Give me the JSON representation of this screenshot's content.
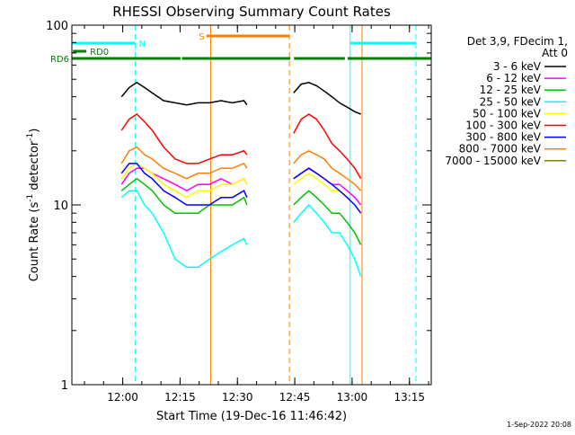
{
  "chart_data": {
    "type": "line",
    "title": "RHESSI Observing Summary Count Rates",
    "xlabel": "Start Time (19-Dec-16 11:46:42)",
    "ylabel_main": "Count Rate (s",
    "ylabel_sup1": "-1",
    "ylabel_mid": " detector",
    "ylabel_sup2": "-1",
    "ylabel_end": ")",
    "y_scale": "log",
    "ylim": [
      1,
      100
    ],
    "xlim_minutes": [
      0,
      94
    ],
    "x_ticks": [
      {
        "t": 13.3,
        "label": "12:00"
      },
      {
        "t": 28.3,
        "label": "12:15"
      },
      {
        "t": 43.3,
        "label": "12:30"
      },
      {
        "t": 58.3,
        "label": "12:45"
      },
      {
        "t": 73.3,
        "label": "13:00"
      },
      {
        "t": 88.3,
        "label": "13:15"
      }
    ],
    "y_ticks": [
      {
        "v": 1,
        "label": "1"
      },
      {
        "v": 10,
        "label": "10"
      },
      {
        "v": 100,
        "label": "100"
      }
    ],
    "legend": {
      "header": [
        "Det 3,9, FDecim 1,",
        "Att 0"
      ],
      "placement": "right"
    },
    "series": [
      {
        "name": "3 - 6 keV",
        "color": "#000000",
        "values": [
          [
            13.0,
            40
          ],
          [
            15.0,
            45
          ],
          [
            17.0,
            48
          ],
          [
            19.0,
            45
          ],
          [
            21.0,
            42
          ],
          [
            24.0,
            38
          ],
          [
            27.0,
            37
          ],
          [
            30.0,
            36
          ],
          [
            33.0,
            37
          ],
          [
            36.0,
            37
          ],
          [
            39.0,
            38
          ],
          [
            42.0,
            37
          ],
          [
            45.0,
            38
          ],
          [
            45.8,
            36
          ],
          [
            58.0,
            42
          ],
          [
            60.0,
            47
          ],
          [
            62.0,
            48
          ],
          [
            64.0,
            46
          ],
          [
            66.0,
            43
          ],
          [
            68.0,
            40
          ],
          [
            70.0,
            37
          ],
          [
            72.0,
            35
          ],
          [
            74.0,
            33
          ],
          [
            75.6,
            32
          ]
        ]
      },
      {
        "name": "6 - 12 keV",
        "color": "#ff00ff",
        "values": [
          [
            13.0,
            13
          ],
          [
            15.0,
            15
          ],
          [
            17.0,
            16
          ],
          [
            19.0,
            16
          ],
          [
            21.0,
            15
          ],
          [
            24.0,
            14
          ],
          [
            27.0,
            13
          ],
          [
            30.0,
            12
          ],
          [
            33.0,
            13
          ],
          [
            36.0,
            13
          ],
          [
            39.0,
            14
          ],
          [
            42.0,
            13
          ],
          [
            45.0,
            14
          ],
          [
            45.8,
            13
          ],
          [
            58.0,
            14
          ],
          [
            60.0,
            15
          ],
          [
            62.0,
            16
          ],
          [
            64.0,
            15
          ],
          [
            66.0,
            14
          ],
          [
            68.0,
            13
          ],
          [
            70.0,
            13
          ],
          [
            72.0,
            12
          ],
          [
            74.0,
            11
          ],
          [
            75.6,
            10
          ]
        ]
      },
      {
        "name": "12 - 25 keV",
        "color": "#00c000",
        "values": [
          [
            13.0,
            12
          ],
          [
            15.0,
            13
          ],
          [
            17.0,
            14
          ],
          [
            19.0,
            13
          ],
          [
            21.0,
            12
          ],
          [
            24.0,
            10
          ],
          [
            27.0,
            9
          ],
          [
            30.0,
            9
          ],
          [
            33.0,
            9
          ],
          [
            36.0,
            10
          ],
          [
            39.0,
            10
          ],
          [
            42.0,
            10
          ],
          [
            45.0,
            11
          ],
          [
            45.8,
            10
          ],
          [
            58.0,
            10
          ],
          [
            60.0,
            11
          ],
          [
            62.0,
            12
          ],
          [
            64.0,
            11
          ],
          [
            66.0,
            10
          ],
          [
            68.0,
            9
          ],
          [
            70.0,
            9
          ],
          [
            72.0,
            8
          ],
          [
            74.0,
            7
          ],
          [
            75.6,
            6
          ]
        ]
      },
      {
        "name": "25 - 50 keV",
        "color": "#00ffff",
        "values": [
          [
            13.0,
            11
          ],
          [
            15.0,
            12
          ],
          [
            17.0,
            12
          ],
          [
            19.0,
            10
          ],
          [
            21.0,
            9
          ],
          [
            24.0,
            7
          ],
          [
            27.0,
            5
          ],
          [
            30.0,
            4.5
          ],
          [
            33.0,
            4.5
          ],
          [
            36.0,
            5
          ],
          [
            39.0,
            5.5
          ],
          [
            42.0,
            6
          ],
          [
            45.0,
            6.5
          ],
          [
            45.8,
            6
          ],
          [
            58.0,
            8
          ],
          [
            60.0,
            9
          ],
          [
            62.0,
            10
          ],
          [
            64.0,
            9
          ],
          [
            66.0,
            8
          ],
          [
            68.0,
            7
          ],
          [
            70.0,
            7
          ],
          [
            72.0,
            6
          ],
          [
            74.0,
            5
          ],
          [
            75.6,
            4
          ]
        ]
      },
      {
        "name": "50 - 100 keV",
        "color": "#ffff00",
        "values": [
          [
            13.0,
            14
          ],
          [
            15.0,
            16
          ],
          [
            17.0,
            17
          ],
          [
            19.0,
            16
          ],
          [
            21.0,
            15
          ],
          [
            24.0,
            13
          ],
          [
            27.0,
            12
          ],
          [
            30.0,
            11
          ],
          [
            33.0,
            12
          ],
          [
            36.0,
            12
          ],
          [
            39.0,
            13
          ],
          [
            42.0,
            13
          ],
          [
            45.0,
            14
          ],
          [
            45.8,
            13
          ],
          [
            58.0,
            13
          ],
          [
            60.0,
            14
          ],
          [
            62.0,
            15
          ],
          [
            64.0,
            14
          ],
          [
            66.0,
            13
          ],
          [
            68.0,
            12
          ],
          [
            70.0,
            12
          ],
          [
            72.0,
            11
          ],
          [
            74.0,
            10
          ],
          [
            75.6,
            9
          ]
        ]
      },
      {
        "name": "100 - 300 keV",
        "color": "#ff0000",
        "values": [
          [
            13.0,
            26
          ],
          [
            15.0,
            30
          ],
          [
            17.0,
            32
          ],
          [
            19.0,
            29
          ],
          [
            21.0,
            26
          ],
          [
            24.0,
            21
          ],
          [
            27.0,
            18
          ],
          [
            30.0,
            17
          ],
          [
            33.0,
            17
          ],
          [
            36.0,
            18
          ],
          [
            39.0,
            19
          ],
          [
            42.0,
            19
          ],
          [
            45.0,
            20
          ],
          [
            45.8,
            19
          ],
          [
            58.0,
            25
          ],
          [
            60.0,
            30
          ],
          [
            62.0,
            32
          ],
          [
            64.0,
            30
          ],
          [
            66.0,
            26
          ],
          [
            68.0,
            22
          ],
          [
            70.0,
            20
          ],
          [
            72.0,
            18
          ],
          [
            74.0,
            16
          ],
          [
            75.6,
            14
          ]
        ]
      },
      {
        "name": "300 - 800 keV",
        "color": "#0000ff",
        "values": [
          [
            13.0,
            15
          ],
          [
            15.0,
            17
          ],
          [
            17.0,
            17
          ],
          [
            19.0,
            15
          ],
          [
            21.0,
            14
          ],
          [
            24.0,
            12
          ],
          [
            27.0,
            11
          ],
          [
            30.0,
            10
          ],
          [
            33.0,
            10
          ],
          [
            36.0,
            10
          ],
          [
            39.0,
            11
          ],
          [
            42.0,
            11
          ],
          [
            45.0,
            12
          ],
          [
            45.8,
            11
          ],
          [
            58.0,
            14
          ],
          [
            60.0,
            15
          ],
          [
            62.0,
            16
          ],
          [
            64.0,
            15
          ],
          [
            66.0,
            14
          ],
          [
            68.0,
            13
          ],
          [
            70.0,
            12
          ],
          [
            72.0,
            11
          ],
          [
            74.0,
            10
          ],
          [
            75.6,
            9
          ]
        ]
      },
      {
        "name": "800 - 7000 keV",
        "color": "#ff8000",
        "values": [
          [
            13.0,
            17
          ],
          [
            15.0,
            20
          ],
          [
            17.0,
            21
          ],
          [
            19.0,
            19
          ],
          [
            21.0,
            18
          ],
          [
            24.0,
            16
          ],
          [
            27.0,
            15
          ],
          [
            30.0,
            14
          ],
          [
            33.0,
            15
          ],
          [
            36.0,
            15
          ],
          [
            39.0,
            16
          ],
          [
            42.0,
            16
          ],
          [
            45.0,
            17
          ],
          [
            45.8,
            16
          ],
          [
            58.0,
            17
          ],
          [
            60.0,
            19
          ],
          [
            62.0,
            20
          ],
          [
            64.0,
            19
          ],
          [
            66.0,
            18
          ],
          [
            68.0,
            16
          ],
          [
            70.0,
            15
          ],
          [
            72.0,
            14
          ],
          [
            74.0,
            13
          ],
          [
            75.6,
            12
          ]
        ]
      },
      {
        "name": "7000 - 15000 keV",
        "color": "#808000",
        "values": []
      }
    ],
    "flag_bars": [
      {
        "label": "N",
        "color": "#00ffff",
        "segments": [
          [
            0,
            16.6
          ],
          [
            72.8,
            90
          ]
        ]
      },
      {
        "label": "S",
        "color": "#ff8000",
        "segments": [
          [
            35.2,
            56.9
          ]
        ]
      },
      {
        "label": "RD0",
        "color": "#008000",
        "segments": [
          [
            0.3,
            3.8
          ]
        ]
      },
      {
        "label": "RD6",
        "color": "#008000",
        "segments": [
          [
            0,
            28.4
          ],
          [
            28.8,
            57.1
          ],
          [
            58.1,
            71.4
          ],
          [
            72.1,
            94
          ]
        ]
      }
    ],
    "vlines": [
      {
        "t": 0.0,
        "color": "#00ffff",
        "dash": false
      },
      {
        "t": 16.6,
        "color": "#00ffff",
        "dash": true
      },
      {
        "t": 36.3,
        "color": "#ff8000",
        "dash": false
      },
      {
        "t": 56.9,
        "color": "#ff8000",
        "dash": true
      },
      {
        "t": 72.8,
        "color": "#00ffff",
        "dash": false
      },
      {
        "t": 75.9,
        "color": "#ff8000",
        "dash": false
      },
      {
        "t": 90.0,
        "color": "#00ffff",
        "dash": true
      }
    ],
    "footer_timestamp": "1-Sep-2022 20:08"
  }
}
